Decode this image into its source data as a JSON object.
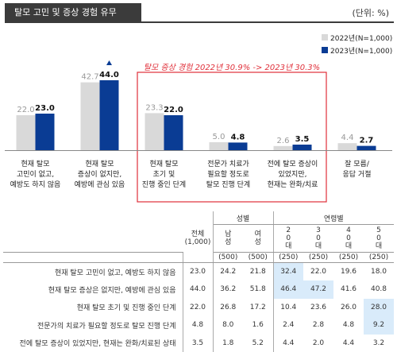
{
  "header": {
    "title": "탈모 고민 및 증상 경험 유무",
    "unit": "(단위: %)"
  },
  "colors": {
    "y2022": "#d9d9d9",
    "y2023": "#0a3c94",
    "box": "#e0303a",
    "highlight": "#d9ebfa"
  },
  "chart_data": {
    "type": "bar",
    "categories": [
      "현재 탈모 고민이 없고, 예방도 하지 않음",
      "현재 탈모 증상이 없지만, 예방에 관심 있음",
      "현재 탈모 초기 및 진행 중인 단계",
      "전문가 치료가 필요할 정도로 탈모 진행 단계",
      "전에 탈모 증상이 있었지만, 현재는 완화/치료",
      "잘 모름/응답 거절"
    ],
    "category_lines": [
      [
        "현재 탈모",
        "고민이 없고,",
        "예방도 하지 않음"
      ],
      [
        "현재 탈모",
        "증상이 없지만,",
        "예방에 관심 있음"
      ],
      [
        "현재 탈모",
        "초기 및",
        "진행 중인 단계"
      ],
      [
        "전문가 치료가",
        "필요할 정도로",
        "탈모 진행 단계"
      ],
      [
        "전에 탈모 증상이",
        "있었지만,",
        "현재는 완화/치료"
      ],
      [
        "잘 모름/",
        "응답 거절"
      ]
    ],
    "series": [
      {
        "name": "2022년(N=1,000)",
        "values": [
          22.0,
          42.7,
          23.3,
          5.0,
          2.6,
          4.4
        ]
      },
      {
        "name": "2023년(N=1,000)",
        "values": [
          23.0,
          44.0,
          22.0,
          4.8,
          3.5,
          2.7
        ]
      }
    ],
    "value_labels": [
      [
        "22.0",
        "42.7",
        "23.3",
        "5.0",
        "2.6",
        "4.4"
      ],
      [
        "23.0",
        "44.0",
        "22.0",
        "4.8",
        "3.5",
        "2.7"
      ]
    ],
    "annotation": "탈모 증상 경험 2022년 30.9% -> 2023년 30.3%",
    "up_marker_category": 1,
    "ylim": [
      0,
      50
    ],
    "legend_position": "top-right"
  },
  "table": {
    "group_headers": {
      "gender": "성별",
      "age": "연령별"
    },
    "columns": [
      {
        "label": "전체",
        "n": "(1,000)"
      },
      {
        "label": "남성",
        "n": "(500)"
      },
      {
        "label": "여성",
        "n": "(500)"
      },
      {
        "label": "20대",
        "n": "(250)"
      },
      {
        "label": "30대",
        "n": "(250)"
      },
      {
        "label": "40대",
        "n": "(250)"
      },
      {
        "label": "50대",
        "n": "(250)"
      }
    ],
    "rows": [
      {
        "label": "현재 탈모 고민이 없고, 예방도 하지 않음",
        "values": [
          "23.0",
          "24.2",
          "21.8",
          "32.4",
          "22.0",
          "19.6",
          "18.0"
        ],
        "highlight": [
          3
        ]
      },
      {
        "label": "현재 탈모 증상은 없지만, 예방에 관심 있음",
        "values": [
          "44.0",
          "36.2",
          "51.8",
          "46.4",
          "47.2",
          "41.6",
          "40.8"
        ],
        "highlight": [
          3,
          4
        ]
      },
      {
        "label": "현재 탈모 초기 및 진행 중인 단계",
        "values": [
          "22.0",
          "26.8",
          "17.2",
          "10.4",
          "23.6",
          "26.0",
          "28.0"
        ],
        "highlight": [
          6
        ]
      },
      {
        "label": "전문가의 치료가 필요할 정도로 탈모 진행 단계",
        "values": [
          "4.8",
          "8.0",
          "1.6",
          "2.4",
          "2.8",
          "4.8",
          "9.2"
        ],
        "highlight": [
          6
        ]
      },
      {
        "label": "전에 탈모 증상이 있었지만, 현재는 완화/치료된 상태",
        "values": [
          "3.5",
          "1.8",
          "5.2",
          "4.4",
          "2.0",
          "4.4",
          "3.2"
        ],
        "highlight": []
      }
    ]
  }
}
